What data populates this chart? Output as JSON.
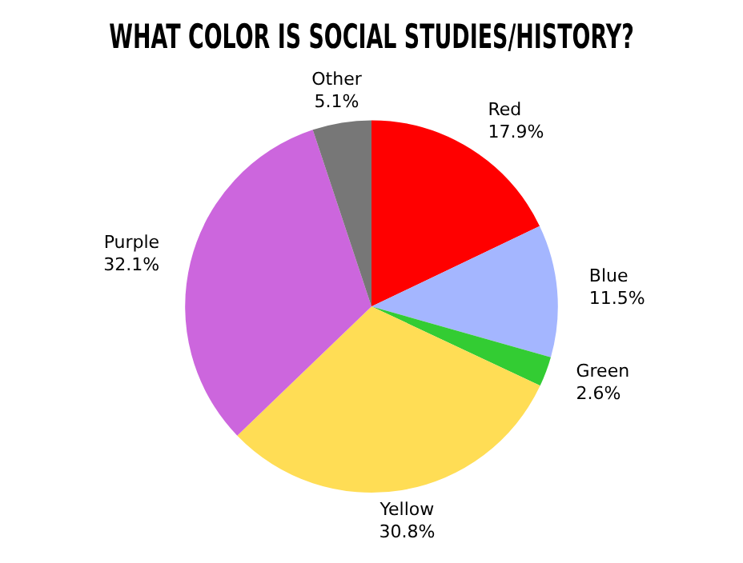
{
  "chart_data": {
    "type": "pie",
    "title": "WHAT COLOR IS SOCIAL STUDIES/HISTORY?",
    "categories": [
      "Red",
      "Blue",
      "Green",
      "Yellow",
      "Purple",
      "Other"
    ],
    "values": [
      17.9,
      11.5,
      2.6,
      30.8,
      32.1,
      5.1
    ],
    "colors": [
      "#ff0000",
      "#a4b6ff",
      "#33cc33",
      "#ffdd55",
      "#cc66dd",
      "#777777"
    ],
    "value_labels": [
      "17.9%",
      "11.5%",
      "2.6%",
      "30.8%",
      "32.1%",
      "5.1%"
    ],
    "legend": false
  }
}
